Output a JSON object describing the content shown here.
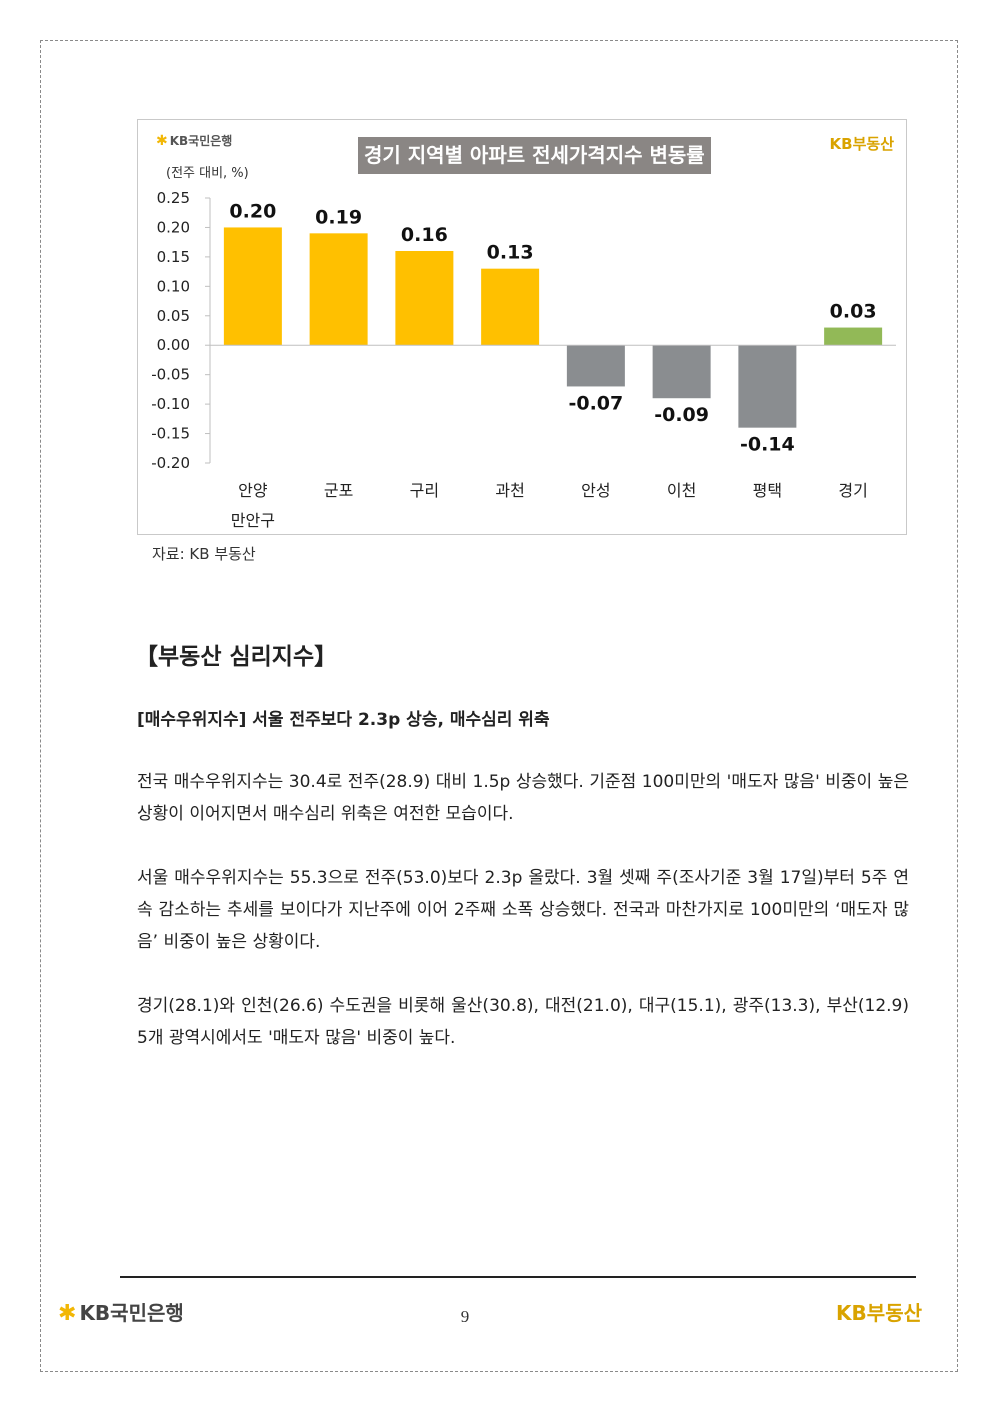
{
  "chart": {
    "bank_logo": "KB국민은행",
    "brand_logo": "KB부동산",
    "unit": "(전주 대비, %)"
  },
  "chart_data": {
    "type": "bar",
    "title": "경기 지역별 아파트 전세가격지수 변동률",
    "categories": [
      {
        "line1": "안양",
        "line2": "만안구"
      },
      {
        "line1": "군포",
        "line2": ""
      },
      {
        "line1": "구리",
        "line2": ""
      },
      {
        "line1": "과천",
        "line2": ""
      },
      {
        "line1": "안성",
        "line2": ""
      },
      {
        "line1": "이천",
        "line2": ""
      },
      {
        "line1": "평택",
        "line2": ""
      },
      {
        "line1": "경기",
        "line2": ""
      }
    ],
    "values": [
      0.2,
      0.19,
      0.16,
      0.13,
      -0.07,
      -0.09,
      -0.14,
      0.03
    ],
    "value_labels": [
      "0.20",
      "0.19",
      "0.16",
      "0.13",
      "-0.07",
      "-0.09",
      "-0.14",
      "0.03"
    ],
    "bar_colors": [
      "#ffc000",
      "#ffc000",
      "#ffc000",
      "#ffc000",
      "#8a8d90",
      "#8a8d90",
      "#8a8d90",
      "#92b957"
    ],
    "ylim": [
      -0.2,
      0.25
    ],
    "yticks": [
      "0.25",
      "0.20",
      "0.15",
      "0.10",
      "0.05",
      "0.00",
      "-0.05",
      "-0.10",
      "-0.15",
      "-0.20"
    ],
    "ytick_values": [
      0.25,
      0.2,
      0.15,
      0.1,
      0.05,
      0.0,
      -0.05,
      -0.1,
      -0.15,
      -0.2
    ],
    "xlabel": "",
    "ylabel": "(전주 대비, %)",
    "grid": false
  },
  "source_note": "자료: KB 부동산",
  "section_title": "【부동산 심리지수】",
  "sub_heading": "[매수우위지수] 서울 전주보다 2.3p 상승, 매수심리 위축",
  "paragraphs": [
    "전국 매수우위지수는 30.4로 전주(28.9) 대비 1.5p 상승했다. 기준점 100미만의 '매도자 많음' 비중이 높은 상황이 이어지면서 매수심리 위축은 여전한 모습이다.",
    "서울 매수우위지수는 55.3으로 전주(53.0)보다 2.3p 올랐다. 3월 셋째 주(조사기준 3월 17일)부터 5주 연속 감소하는 추세를 보이다가 지난주에 이어 2주째 소폭 상승했다. 전국과 마찬가지로 100미만의 ‘매도자 많음’ 비중이 높은 상황이다.",
    "경기(28.1)와 인천(26.6) 수도권을 비롯해 울산(30.8), 대전(21.0), 대구(15.1), 광주(13.3), 부산(12.9) 5개 광역시에서도 '매도자 많음' 비중이 높다."
  ],
  "footer": {
    "bank_logo": "KB국민은행",
    "page_number": "9",
    "brand_logo": "KB부동산"
  }
}
